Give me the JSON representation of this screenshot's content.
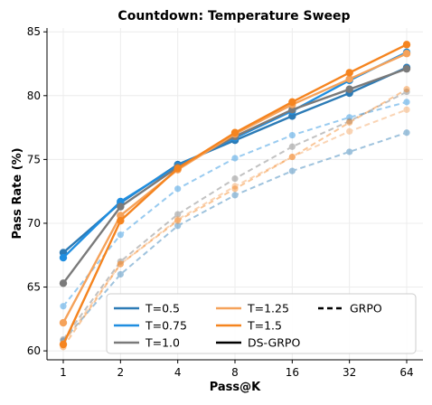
{
  "chart_data": {
    "type": "line",
    "title": "Countdown: Temperature Sweep",
    "xlabel": "Pass@K",
    "ylabel": "Pass Rate (%)",
    "categories": [
      "1",
      "2",
      "4",
      "8",
      "16",
      "32",
      "64"
    ],
    "ylim": [
      59.3,
      85.3
    ],
    "yticks": [
      60,
      65,
      70,
      75,
      80,
      85
    ],
    "grid": true,
    "legend_position": "lower-right",
    "temperatures": [
      {
        "label": "T=0.5",
        "color": "#2c7bb6"
      },
      {
        "label": "T=0.75",
        "color": "#1f8ee0"
      },
      {
        "label": "T=1.0",
        "color": "#7a7a7a"
      },
      {
        "label": "T=1.25",
        "color": "#f5a25a"
      },
      {
        "label": "T=1.5",
        "color": "#f5841f"
      }
    ],
    "styles": [
      {
        "label": "DS-GRPO",
        "dash": "solid"
      },
      {
        "label": "GRPO",
        "dash": "dashed"
      }
    ],
    "series": [
      {
        "temp": 0,
        "style": 0,
        "values": [
          67.7,
          71.6,
          74.6,
          76.5,
          78.4,
          80.2,
          82.2
        ]
      },
      {
        "temp": 1,
        "style": 0,
        "values": [
          67.3,
          71.7,
          74.5,
          76.7,
          78.8,
          81.2,
          83.4
        ]
      },
      {
        "temp": 2,
        "style": 0,
        "values": [
          65.3,
          71.3,
          74.4,
          76.8,
          78.9,
          80.5,
          82.1
        ]
      },
      {
        "temp": 3,
        "style": 0,
        "values": [
          62.2,
          70.6,
          74.2,
          77.0,
          79.3,
          81.3,
          83.3
        ]
      },
      {
        "temp": 4,
        "style": 0,
        "values": [
          60.5,
          70.2,
          74.3,
          77.1,
          79.5,
          81.8,
          84.0
        ]
      },
      {
        "temp": 0,
        "style": 1,
        "values": [
          60.8,
          66.0,
          69.8,
          72.2,
          74.1,
          75.6,
          77.1
        ]
      },
      {
        "temp": 1,
        "style": 1,
        "values": [
          63.5,
          69.1,
          72.7,
          75.1,
          76.9,
          78.3,
          79.5
        ]
      },
      {
        "temp": 2,
        "style": 1,
        "values": [
          60.9,
          67.0,
          70.7,
          73.5,
          76.0,
          78.0,
          80.3
        ]
      },
      {
        "temp": 3,
        "style": 1,
        "values": [
          60.6,
          66.8,
          70.3,
          72.9,
          75.2,
          77.2,
          78.9
        ]
      },
      {
        "temp": 4,
        "style": 1,
        "values": [
          60.3,
          66.8,
          70.2,
          72.7,
          75.2,
          77.9,
          80.5
        ]
      }
    ]
  }
}
